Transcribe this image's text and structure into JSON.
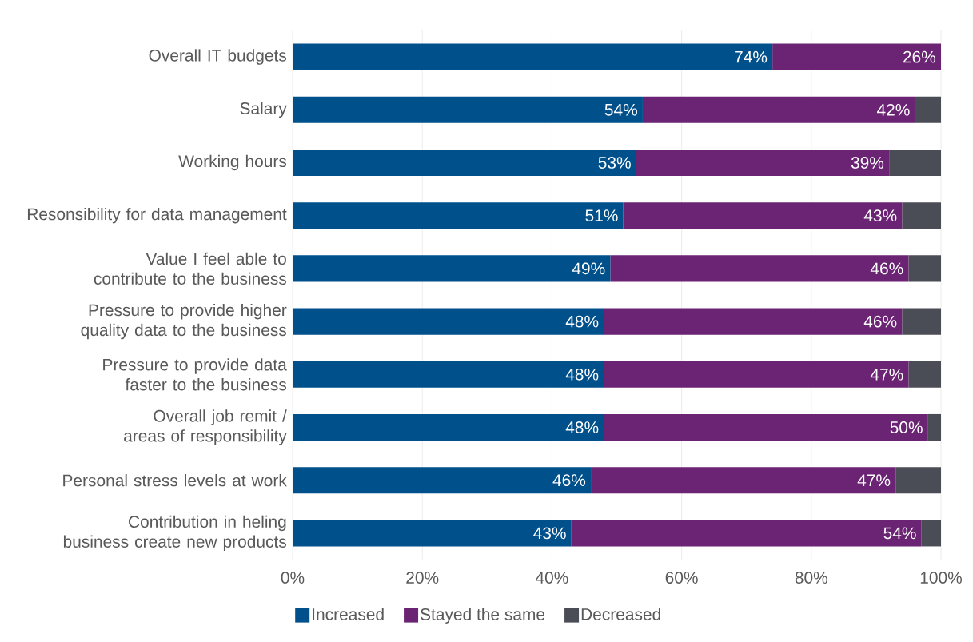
{
  "chart_data": {
    "type": "bar",
    "orientation": "horizontal",
    "stacked": true,
    "categories": [
      "Overall IT budgets",
      "Salary",
      "Working hours",
      "Resonsibility for data management",
      "Value I feel able to contribute to the business",
      "Pressure to provide higher quality data to the business",
      "Pressure to provide data faster to the business",
      "Overall job remit / areas of responsibility",
      "Personal stress levels at work",
      "Contribution in heling business create new products"
    ],
    "series": [
      {
        "name": "Increased",
        "color": "#00508c",
        "values": [
          74,
          54,
          53,
          51,
          49,
          48,
          48,
          48,
          46,
          43
        ],
        "value_labels": [
          "74%",
          "54%",
          "53%",
          "51%",
          "49%",
          "48%",
          "48%",
          "48%",
          "46%",
          "43%"
        ]
      },
      {
        "name": "Stayed the same",
        "color": "#6b2374",
        "values": [
          26,
          42,
          39,
          43,
          46,
          46,
          47,
          50,
          47,
          54
        ],
        "value_labels": [
          "26%",
          "42%",
          "39%",
          "43%",
          "46%",
          "46%",
          "47%",
          "50%",
          "47%",
          "54%"
        ]
      },
      {
        "name": "Decreased",
        "color": "#4a4d55",
        "values": [
          0,
          4,
          8,
          6,
          5,
          6,
          5,
          2,
          7,
          3
        ]
      }
    ],
    "xlim": [
      0,
      100
    ],
    "xticks": [
      {
        "value": 0,
        "label": "0%"
      },
      {
        "value": 20,
        "label": "20%"
      },
      {
        "value": 40,
        "label": "40%"
      },
      {
        "value": 60,
        "label": "60%"
      },
      {
        "value": 80,
        "label": "80%"
      },
      {
        "value": 100,
        "label": "100%"
      }
    ],
    "grid": "x",
    "legend": "bottom"
  }
}
